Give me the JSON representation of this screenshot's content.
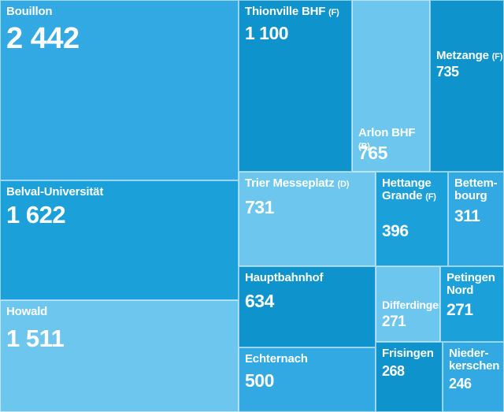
{
  "colors": {
    "c1": "#32a9e2",
    "c2": "#1ba0d9",
    "c3": "#0e93cd",
    "c4": "#6cc6ee",
    "label": "#ffffff"
  },
  "chart_data": {
    "type": "treemap",
    "title": "",
    "tiles": [
      {
        "id": "bouillon",
        "name": "Bouillon",
        "suffix": "",
        "value_label": "2 442",
        "value": 2442,
        "color": "c1"
      },
      {
        "id": "belval",
        "name": "Belval-Universität",
        "suffix": "",
        "value_label": "1 622",
        "value": 1622,
        "color": "c2"
      },
      {
        "id": "howald",
        "name": "Howald",
        "suffix": "",
        "value_label": "1 511",
        "value": 1511,
        "color": "c4"
      },
      {
        "id": "thionville",
        "name": "Thionville BHF",
        "suffix": "(F)",
        "value_label": "1 100",
        "value": 1100,
        "color": "c3"
      },
      {
        "id": "arlon",
        "name": "Arlon BHF",
        "suffix": "(B)",
        "value_label": "765",
        "value": 765,
        "color": "c4"
      },
      {
        "id": "metzange",
        "name": "Metzange",
        "suffix": "(F)",
        "value_label": "735",
        "value": 735,
        "color": "c3"
      },
      {
        "id": "trier",
        "name": "Trier Messeplatz",
        "suffix": "(D)",
        "value_label": "731",
        "value": 731,
        "color": "c4"
      },
      {
        "id": "hettange",
        "name": "Hettange Grande",
        "suffix": "(F)",
        "value_label": "396",
        "value": 396,
        "color": "c2"
      },
      {
        "id": "bettembourg",
        "name": "Bettem-bourg",
        "suffix": "",
        "value_label": "311",
        "value": 311,
        "color": "c1"
      },
      {
        "id": "hauptbahnhof",
        "name": "Hauptbahnhof",
        "suffix": "",
        "value_label": "634",
        "value": 634,
        "color": "c3"
      },
      {
        "id": "differdingen",
        "name": "Differdingen",
        "suffix": "",
        "value_label": "271",
        "value": 271,
        "color": "c4"
      },
      {
        "id": "petingen",
        "name": "Petingen Nord",
        "suffix": "",
        "value_label": "271",
        "value": 271,
        "color": "c2"
      },
      {
        "id": "echternach",
        "name": "Echternach",
        "suffix": "",
        "value_label": "500",
        "value": 500,
        "color": "c1"
      },
      {
        "id": "frisingen",
        "name": "Frisingen",
        "suffix": "",
        "value_label": "268",
        "value": 268,
        "color": "c3"
      },
      {
        "id": "niederkerschen",
        "name": "Nieder-kerschen",
        "suffix": "",
        "value_label": "246",
        "value": 246,
        "color": "c1"
      }
    ]
  }
}
